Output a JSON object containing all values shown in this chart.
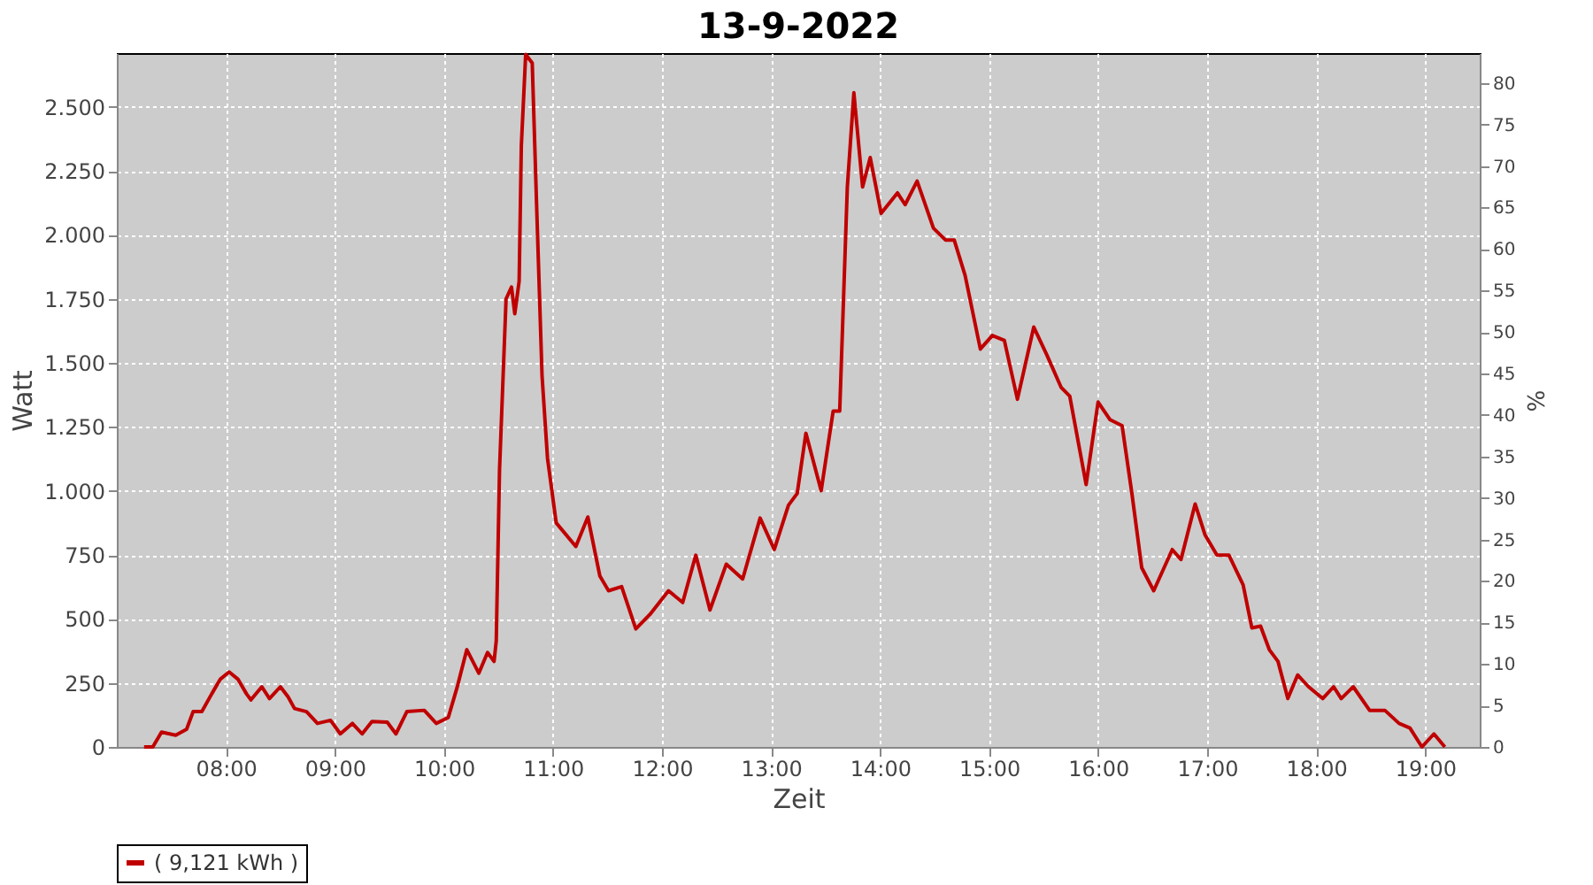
{
  "chart_data": {
    "type": "line",
    "title": "13-9-2022",
    "xlabel": "Zeit",
    "ylabel": "Watt",
    "y2label": "%",
    "x": [
      7.25,
      7.33,
      7.41,
      7.54,
      7.64,
      7.7,
      7.78,
      7.87,
      7.95,
      8.03,
      8.11,
      8.19,
      8.23,
      8.33,
      8.4,
      8.5,
      8.57,
      8.63,
      8.74,
      8.84,
      8.96,
      9.05,
      9.16,
      9.25,
      9.34,
      9.48,
      9.56,
      9.66,
      9.82,
      9.93,
      10.04,
      10.12,
      10.21,
      10.32,
      10.4,
      10.46,
      10.48,
      10.51,
      10.57,
      10.62,
      10.65,
      10.69,
      10.71,
      10.75,
      10.81,
      10.85,
      10.9,
      10.95,
      11.03,
      11.21,
      11.32,
      11.43,
      11.51,
      11.63,
      11.76,
      11.89,
      12.06,
      12.19,
      12.31,
      12.44,
      12.59,
      12.74,
      12.9,
      13.03,
      13.16,
      13.24,
      13.32,
      13.46,
      13.57,
      13.63,
      13.7,
      13.76,
      13.84,
      13.91,
      14.01,
      14.16,
      14.23,
      14.34,
      14.49,
      14.6,
      14.68,
      14.78,
      14.92,
      15.03,
      15.14,
      15.26,
      15.41,
      15.53,
      15.66,
      15.74,
      15.89,
      16.0,
      16.11,
      16.22,
      16.31,
      16.4,
      16.51,
      16.68,
      16.76,
      16.89,
      16.98,
      17.09,
      17.2,
      17.33,
      17.41,
      17.49,
      17.57,
      17.65,
      17.74,
      17.83,
      17.93,
      18.06,
      18.16,
      18.23,
      18.34,
      18.49,
      18.63,
      18.76,
      18.86,
      18.97,
      19.08,
      19.18
    ],
    "series": [
      {
        "name": "( 9,121 kWh )",
        "color": "#c00000",
        "values": [
          0,
          0,
          58,
          46,
          69,
          138,
          138,
          207,
          265,
          293,
          265,
          207,
          184,
          235,
          189,
          235,
          196,
          150,
          138,
          92,
          104,
          51,
          92,
          51,
          99,
          97,
          51,
          138,
          143,
          92,
          115,
          231,
          380,
          288,
          369,
          334,
          414,
          1082,
          1750,
          1796,
          1692,
          1819,
          2348,
          2705,
          2671,
          2118,
          1450,
          1128,
          875,
          783,
          898,
          668,
          610,
          626,
          461,
          518,
          610,
          564,
          749,
          535,
          714,
          656,
          894,
          771,
          944,
          990,
          1225,
          1001,
          1312,
          1312,
          2187,
          2555,
          2187,
          2302,
          2084,
          2164,
          2118,
          2210,
          2026,
          1980,
          1980,
          1842,
          1554,
          1607,
          1588,
          1358,
          1640,
          1531,
          1405,
          1370,
          1025,
          1347,
          1278,
          1255,
          990,
          700,
          610,
          771,
          732,
          949,
          829,
          749,
          749,
          633,
          465,
          472,
          380,
          334,
          189,
          281,
          235,
          189,
          235,
          189,
          235,
          143,
          143,
          92,
          74,
          0,
          51,
          0
        ]
      }
    ],
    "xlim": [
      7,
      19.5
    ],
    "xticks": [
      {
        "value": 8,
        "label": "08:00"
      },
      {
        "value": 9,
        "label": "09:00"
      },
      {
        "value": 10,
        "label": "10:00"
      },
      {
        "value": 11,
        "label": "11:00"
      },
      {
        "value": 12,
        "label": "12:00"
      },
      {
        "value": 13,
        "label": "13:00"
      },
      {
        "value": 14,
        "label": "14:00"
      },
      {
        "value": 15,
        "label": "15:00"
      },
      {
        "value": 16,
        "label": "16:00"
      },
      {
        "value": 17,
        "label": "17:00"
      },
      {
        "value": 18,
        "label": "18:00"
      },
      {
        "value": 19,
        "label": "19:00"
      }
    ],
    "ylim": [
      0,
      2710
    ],
    "yticks": [
      0,
      250,
      500,
      750,
      {
        "value": 1000,
        "label": "1.000"
      },
      {
        "value": 1250,
        "label": "1.250"
      },
      {
        "value": 1500,
        "label": "1.500"
      },
      {
        "value": 1750,
        "label": "1.750"
      },
      {
        "value": 2000,
        "label": "2.000"
      },
      {
        "value": 2250,
        "label": "2.250"
      },
      {
        "value": 2500,
        "label": "2.500"
      }
    ],
    "y2lim": [
      0,
      83.6
    ],
    "y2ticks": [
      0,
      5,
      10,
      15,
      20,
      25,
      30,
      35,
      40,
      45,
      50,
      55,
      60,
      65,
      70,
      75,
      80
    ],
    "grid": true,
    "legend": "bottom",
    "marker": "none",
    "line_style": "solid"
  }
}
